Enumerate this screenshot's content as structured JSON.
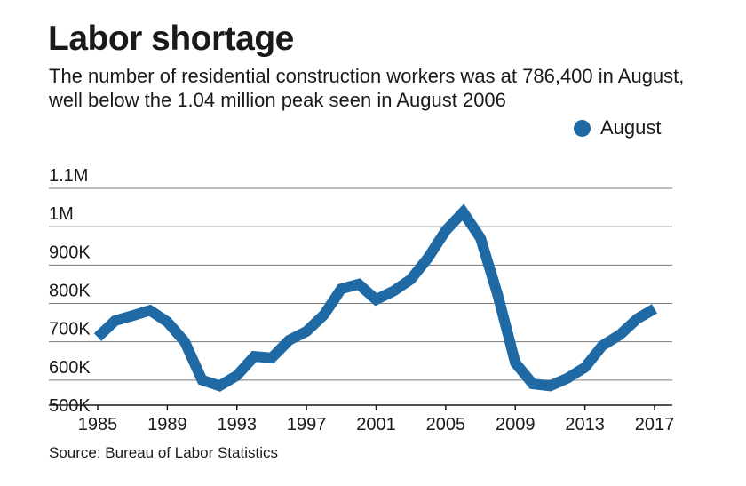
{
  "title": "Labor shortage",
  "subtitle": "The number of residential construction workers was at 786,400 in August, well below the 1.04 million peak seen in August 2006",
  "source": "Source: Bureau of Labor Statistics",
  "colors": {
    "line": "#1f6aa5",
    "grid": "#7a7a7a",
    "text": "#1a1a1a"
  },
  "chart_data": {
    "type": "line",
    "title": "Labor shortage",
    "legend": "top-right",
    "grid": true,
    "ylim": [
      500000,
      1100000
    ],
    "yticks": [
      {
        "value": 500000,
        "label": "500K"
      },
      {
        "value": 600000,
        "label": "600K"
      },
      {
        "value": 700000,
        "label": "700K"
      },
      {
        "value": 800000,
        "label": "800K"
      },
      {
        "value": 900000,
        "label": "900K"
      },
      {
        "value": 1000000,
        "label": "1M"
      },
      {
        "value": 1100000,
        "label": "1.1M"
      }
    ],
    "xlim": [
      1985,
      2017
    ],
    "xticks": [
      1985,
      1989,
      1993,
      1997,
      2001,
      2005,
      2009,
      2013,
      2017
    ],
    "series": [
      {
        "name": "August",
        "x": [
          1985,
          1986,
          1987,
          1988,
          1989,
          1990,
          1991,
          1992,
          1993,
          1994,
          1995,
          1996,
          1997,
          1998,
          1999,
          2000,
          2001,
          2002,
          2003,
          2004,
          2005,
          2006,
          2007,
          2008,
          2009,
          2010,
          2011,
          2012,
          2013,
          2014,
          2015,
          2016,
          2017
        ],
        "y": [
          712000,
          755000,
          768000,
          782000,
          752000,
          700000,
          600000,
          585000,
          612000,
          662000,
          658000,
          704000,
          727000,
          770000,
          838000,
          850000,
          810000,
          832000,
          863000,
          920000,
          990000,
          1038000,
          970000,
          820000,
          645000,
          590000,
          585000,
          605000,
          633000,
          690000,
          718000,
          760000,
          786400
        ]
      }
    ]
  }
}
